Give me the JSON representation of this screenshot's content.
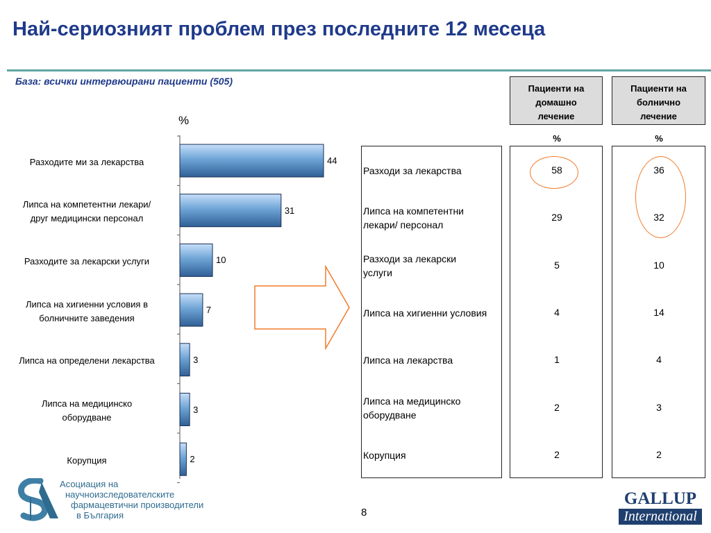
{
  "title": "Най-сериозният проблем през последните 12 месеца",
  "base": "База: всички интервюирани пациенти (505)",
  "chart_data": {
    "type": "bar",
    "orientation": "horizontal",
    "unit_label": "%",
    "categories": [
      [
        "Разходите ми за лекарства"
      ],
      [
        "Липса на компетентни лекари/",
        "друг медицински персонал"
      ],
      [
        "Разходите за лекарски услуги"
      ],
      [
        "Липса на хигиенни условия в",
        "болничните заведения"
      ],
      [
        "Липса на определени лекарства"
      ],
      [
        "Липса на медицинско",
        "оборудване"
      ],
      [
        "Корупция"
      ]
    ],
    "values": [
      44,
      31,
      10,
      7,
      3,
      3,
      2
    ],
    "xlim": [
      0,
      50
    ],
    "bar_color": "#6fa5d6"
  },
  "table": {
    "columns": [
      {
        "header": [
          "Пациенти на",
          "домашно",
          "лечение"
        ],
        "unit": "%"
      },
      {
        "header": [
          "Пациенти на",
          "болнично",
          "лечение"
        ],
        "unit": "%"
      }
    ],
    "rows": [
      {
        "label": [
          "Разходи за лекарства"
        ],
        "home": "58",
        "hospital": "36"
      },
      {
        "label": [
          "Липса на компетентни",
          "лекари/ персонал"
        ],
        "home": "29",
        "hospital": "32"
      },
      {
        "label": [
          "Разходи за лекарски",
          "услуги"
        ],
        "home": "5",
        "hospital": "10"
      },
      {
        "label": [
          "Липса на хигиенни условия"
        ],
        "home": "4",
        "hospital": "14"
      },
      {
        "label": [
          "Липса на лекарства"
        ],
        "home": "1",
        "hospital": "4"
      },
      {
        "label": [
          "Липса на медицинско",
          "оборудване"
        ],
        "home": "2",
        "hospital": "3"
      },
      {
        "label": [
          "Корупция"
        ],
        "home": "2",
        "hospital": "2"
      }
    ],
    "highlight_color": "#f07b2c"
  },
  "footer": {
    "org_lines": [
      "Асоциация на",
      "научноизследователските",
      "фармацевтични производители",
      "в България"
    ],
    "page_number": "8",
    "gallup_name": "GALLUP",
    "gallup_sub": "International"
  }
}
